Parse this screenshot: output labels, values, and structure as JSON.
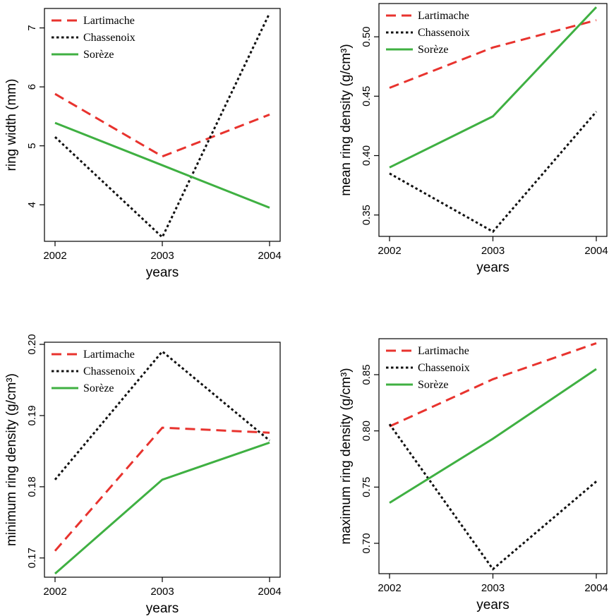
{
  "chart_data": [
    {
      "type": "line",
      "x": [
        "2002",
        "2003",
        "2004"
      ],
      "xlabel": "years",
      "ylabel": "ring width (mm)",
      "ylim": [
        3.38,
        7.33
      ],
      "yticks": [
        "4",
        "5",
        "6",
        "7"
      ],
      "legend": "top-left",
      "series": [
        {
          "name": "Lartimache",
          "values": [
            5.88,
            4.82,
            5.53
          ]
        },
        {
          "name": "Chassenoix",
          "values": [
            5.15,
            3.45,
            7.25
          ]
        },
        {
          "name": "Sorèze",
          "values": [
            5.39,
            4.67,
            3.95
          ]
        }
      ]
    },
    {
      "type": "line",
      "x": [
        "2002",
        "2003",
        "2004"
      ],
      "xlabel": "years",
      "ylabel": "mean ring density (g/cm³)",
      "ylim": [
        0.332,
        0.528
      ],
      "yticks": [
        "0.35",
        "0.40",
        "0.45",
        "0.50"
      ],
      "legend": "top-left",
      "series": [
        {
          "name": "Lartimache",
          "values": [
            0.457,
            0.491,
            0.514
          ]
        },
        {
          "name": "Chassenoix",
          "values": [
            0.385,
            0.336,
            0.437
          ]
        },
        {
          "name": "Sorèze",
          "values": [
            0.39,
            0.433,
            0.525
          ]
        }
      ]
    },
    {
      "type": "line",
      "x": [
        "2002",
        "2003",
        "2004"
      ],
      "xlabel": "years",
      "ylabel": "minimum ring density (g/cm³)",
      "ylim": [
        0.1673,
        0.2003
      ],
      "yticks": [
        "0.17",
        "0.18",
        "0.19",
        "0.20"
      ],
      "legend": "top-left",
      "series": [
        {
          "name": "Lartimache",
          "values": [
            0.171,
            0.1883,
            0.1876
          ]
        },
        {
          "name": "Chassenoix",
          "values": [
            0.181,
            0.199,
            0.1865
          ]
        },
        {
          "name": "Sorèze",
          "values": [
            0.1678,
            0.181,
            0.1862
          ]
        }
      ]
    },
    {
      "type": "line",
      "x": [
        "2002",
        "2003",
        "2004"
      ],
      "xlabel": "years",
      "ylabel": "maximum ring density (g/cm³)",
      "ylim": [
        0.673,
        0.882
      ],
      "yticks": [
        "0.70",
        "0.75",
        "0.80",
        "0.85"
      ],
      "legend": "top-left",
      "series": [
        {
          "name": "Lartimache",
          "values": [
            0.804,
            0.846,
            0.878
          ]
        },
        {
          "name": "Chassenoix",
          "values": [
            0.806,
            0.677,
            0.755
          ]
        },
        {
          "name": "Sorèze",
          "values": [
            0.736,
            0.793,
            0.855
          ]
        }
      ]
    }
  ],
  "styles": {
    "Lartimache": {
      "color": "#e8332e",
      "dash": "14,8"
    },
    "Chassenoix": {
      "color": "#111111",
      "dash": "3.5,3.5"
    },
    "Sorèze": {
      "color": "#3fb042",
      "dash": ""
    }
  }
}
